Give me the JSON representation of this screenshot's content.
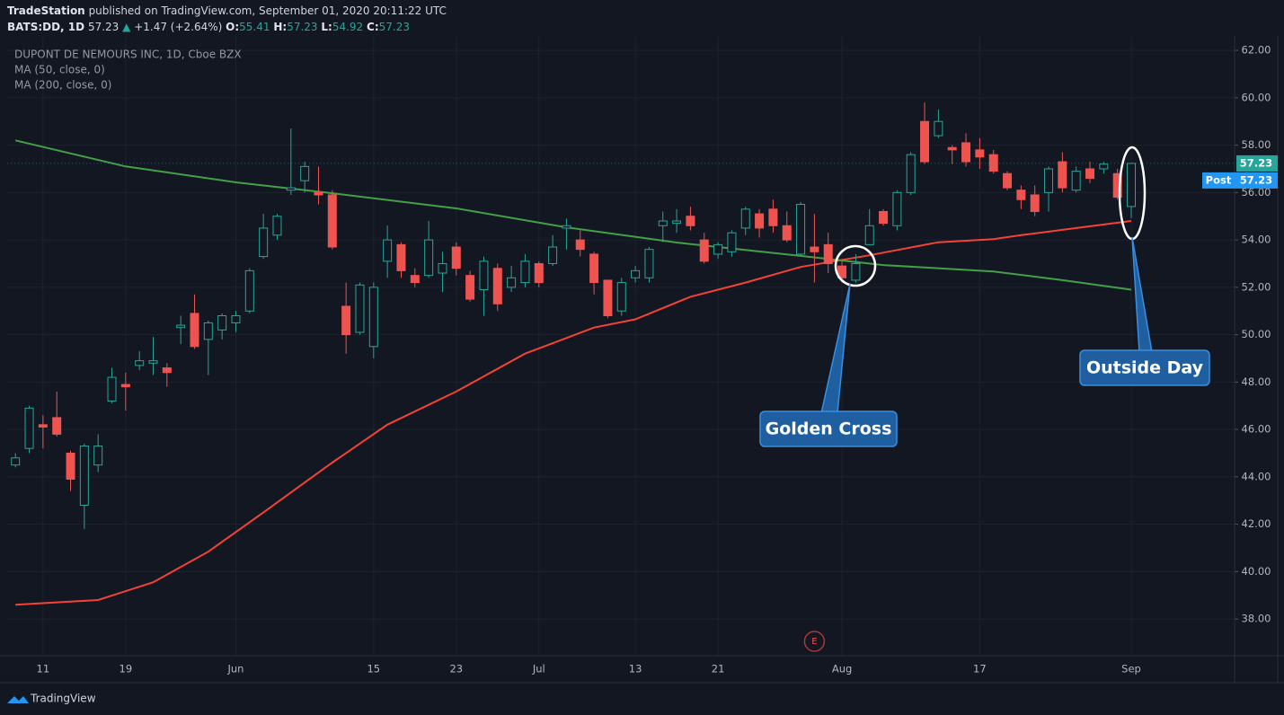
{
  "header": {
    "publisher": "TradeStation",
    "published": "published on TradingView.com, September 01, 2020 20:11:22 UTC",
    "symbol": "BATS:DD, 1D",
    "last": "57.23",
    "change": "+1.47 (+2.64%)",
    "o_label": "O:",
    "o": "55.41",
    "h_label": "H:",
    "h": "57.23",
    "l_label": "L:",
    "l": "54.92",
    "c_label": "C:",
    "c": "57.23"
  },
  "chart_data": {
    "type": "candlestick",
    "title": "DUPONT DE NEMOURS INC, 1D, Cboe BZX",
    "up_color": "#26a69a",
    "down_color": "#ef5350",
    "categories": [
      null,
      null,
      "11",
      null,
      null,
      null,
      null,
      null,
      "19",
      null,
      null,
      null,
      null,
      null,
      null,
      null,
      "Jun",
      null,
      null,
      null,
      null,
      null,
      null,
      null,
      null,
      null,
      "15",
      null,
      null,
      null,
      null,
      null,
      "23",
      null,
      null,
      null,
      null,
      null,
      "Jul",
      null,
      null,
      null,
      null,
      null,
      null,
      "13",
      null,
      null,
      null,
      null,
      null,
      "21",
      null,
      null,
      null,
      null,
      null,
      null,
      null,
      null,
      "Aug",
      null,
      null,
      null,
      null,
      null,
      null,
      null,
      null,
      null,
      "17",
      null,
      null,
      null,
      null,
      null,
      null,
      null,
      null,
      null,
      null,
      "Sep"
    ],
    "open": [
      44.5,
      45.2,
      46.2,
      46.5,
      45.0,
      42.8,
      44.5,
      47.2,
      47.9,
      48.7,
      48.8,
      48.6,
      50.3,
      50.9,
      49.8,
      50.2,
      50.5,
      51.0,
      53.3,
      54.2,
      56.1,
      56.5,
      56.0,
      55.9,
      51.2,
      50.1,
      49.5,
      53.1,
      53.8,
      52.5,
      52.5,
      52.6,
      53.7,
      52.5,
      51.9,
      52.8,
      52.0,
      52.2,
      53.0,
      53.0,
      54.5,
      54.0,
      53.4,
      52.3,
      51.0,
      52.4,
      52.4,
      54.6,
      54.7,
      55.0,
      54.0,
      53.4,
      53.5,
      54.5,
      55.1,
      55.3,
      54.6,
      53.4,
      53.7,
      53.8,
      52.9,
      52.3,
      53.8,
      55.2,
      54.6,
      56.0,
      59.0,
      58.4,
      57.9,
      58.1,
      57.8,
      57.6,
      56.8,
      56.1,
      55.9,
      56.0,
      57.3,
      56.1,
      57.0,
      57.0,
      56.8,
      55.41
    ],
    "high": [
      45.0,
      47.0,
      46.6,
      47.6,
      45.1,
      45.4,
      45.8,
      48.6,
      48.4,
      49.3,
      49.9,
      48.8,
      50.8,
      51.7,
      50.6,
      50.9,
      51.0,
      52.8,
      55.1,
      55.1,
      58.7,
      57.3,
      57.1,
      56.1,
      52.2,
      52.2,
      52.2,
      54.6,
      53.9,
      52.8,
      54.8,
      53.5,
      53.9,
      52.7,
      53.3,
      53.0,
      52.9,
      53.4,
      53.1,
      54.2,
      54.9,
      54.4,
      53.5,
      52.3,
      52.4,
      52.9,
      53.7,
      55.2,
      55.3,
      55.4,
      54.3,
      53.9,
      54.4,
      55.4,
      55.3,
      55.7,
      55.2,
      55.6,
      55.1,
      54.3,
      53.1,
      53.4,
      55.3,
      55.3,
      56.1,
      57.7,
      59.8,
      59.5,
      58.0,
      58.5,
      58.3,
      57.8,
      56.9,
      56.3,
      56.3,
      57.1,
      57.7,
      57.1,
      57.3,
      57.3,
      57.0,
      57.23
    ],
    "low": [
      44.4,
      45.0,
      45.2,
      45.7,
      43.4,
      41.8,
      44.2,
      47.1,
      46.8,
      48.5,
      48.3,
      47.8,
      49.6,
      49.4,
      48.3,
      49.8,
      50.1,
      50.9,
      53.2,
      54.0,
      55.9,
      56.0,
      55.5,
      53.6,
      49.2,
      50.0,
      49.0,
      52.4,
      52.4,
      52.0,
      52.4,
      51.8,
      52.5,
      51.4,
      50.8,
      51.0,
      51.8,
      52.0,
      52.0,
      52.9,
      53.6,
      53.3,
      51.7,
      50.7,
      50.8,
      52.2,
      52.2,
      53.9,
      54.3,
      54.4,
      53.0,
      53.2,
      53.3,
      54.2,
      54.1,
      54.3,
      53.9,
      53.3,
      52.2,
      52.6,
      52.2,
      52.2,
      53.8,
      54.6,
      54.4,
      55.9,
      57.2,
      58.3,
      57.2,
      57.1,
      57.0,
      56.8,
      56.1,
      55.3,
      55.0,
      55.2,
      56.0,
      56.0,
      56.4,
      56.8,
      55.7,
      54.92
    ],
    "close": [
      44.8,
      46.9,
      46.1,
      45.8,
      43.9,
      45.3,
      45.3,
      48.2,
      47.8,
      48.9,
      48.9,
      48.4,
      50.4,
      49.5,
      50.5,
      50.8,
      50.8,
      52.7,
      54.5,
      55.0,
      56.2,
      57.1,
      55.9,
      53.7,
      50.0,
      52.1,
      52.0,
      54.0,
      52.7,
      52.2,
      54.0,
      53.0,
      52.8,
      51.5,
      53.1,
      51.3,
      52.4,
      53.1,
      52.2,
      53.7,
      54.6,
      53.6,
      52.2,
      50.8,
      52.2,
      52.7,
      53.6,
      54.8,
      54.8,
      54.6,
      53.1,
      53.8,
      54.3,
      55.3,
      54.5,
      54.6,
      54.0,
      55.5,
      53.5,
      53.0,
      52.4,
      53.0,
      54.6,
      54.7,
      56.0,
      57.6,
      57.3,
      59.0,
      57.8,
      57.3,
      57.5,
      56.9,
      56.2,
      55.7,
      55.2,
      57.0,
      56.2,
      56.9,
      56.6,
      57.2,
      55.8,
      57.23
    ],
    "ma": [
      {
        "name": "MA (50, close, 0)",
        "color": "#f44336",
        "x": [
          0,
          6,
          10,
          14,
          18,
          23,
          27,
          32,
          37,
          42,
          45,
          49,
          53,
          57,
          62,
          67,
          71,
          73,
          77,
          81
        ],
        "values": [
          38.6,
          38.8,
          39.55,
          40.84,
          42.5,
          44.6,
          46.2,
          47.6,
          49.2,
          50.3,
          50.65,
          51.6,
          52.2,
          52.86,
          53.35,
          53.9,
          54.03,
          54.2,
          54.5,
          54.8
        ]
      },
      {
        "name": "MA (200, close, 0)",
        "color": "#43a047",
        "x": [
          0,
          8,
          16,
          23,
          32,
          40,
          48,
          56,
          63,
          71,
          76,
          81
        ],
        "values": [
          58.2,
          57.1,
          56.43,
          55.97,
          55.33,
          54.53,
          53.89,
          53.39,
          52.94,
          52.67,
          52.3,
          51.9
        ]
      }
    ],
    "xlim": [
      -0.6,
      88.5
    ],
    "ylim": [
      36.45,
      62.61
    ],
    "yticks": [
      {
        "value": 38,
        "label": "38.00"
      },
      {
        "value": 40,
        "label": "40.00"
      },
      {
        "value": 42,
        "label": "42.00"
      },
      {
        "value": 44,
        "label": "44.00"
      },
      {
        "value": 46,
        "label": "46.00"
      },
      {
        "value": 48,
        "label": "48.00"
      },
      {
        "value": 50,
        "label": "50.00"
      },
      {
        "value": 52,
        "label": "52.00"
      },
      {
        "value": 54,
        "label": "54.00"
      },
      {
        "value": 56,
        "label": "56.00"
      },
      {
        "value": 58,
        "label": "58.00"
      },
      {
        "value": 60,
        "label": "60.00"
      },
      {
        "value": 62,
        "label": "62.00"
      }
    ],
    "grid": true,
    "last_price": 57.23,
    "post_label": "Post",
    "post_price": 57.23,
    "events": [
      {
        "label": "E",
        "x": 58
      }
    ],
    "annotations": [
      {
        "text": "Golden Cross"
      },
      {
        "text": "Outside Day"
      }
    ]
  },
  "footer": {
    "brand": "TradingView"
  }
}
